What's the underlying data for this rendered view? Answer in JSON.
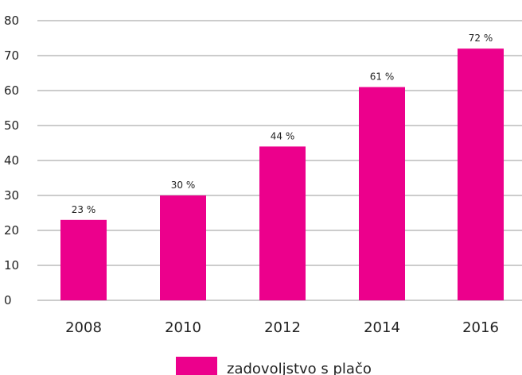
{
  "chart_data": {
    "type": "bar",
    "categories": [
      "2008",
      "2010",
      "2012",
      "2014",
      "2016"
    ],
    "series": [
      {
        "name": "zadovoljstvo s plačo",
        "values": [
          23,
          30,
          44,
          61,
          72
        ],
        "data_labels": [
          "23 %",
          "30 %",
          "44 %",
          "61 %",
          "72 %"
        ],
        "color": "#ec008c"
      }
    ],
    "y_ticks": [
      "0",
      "10",
      "20",
      "30",
      "40",
      "50",
      "60",
      "70",
      "80"
    ],
    "ylim": [
      0,
      80
    ],
    "grid": true,
    "legend_position": "bottom-center",
    "title": "",
    "xlabel": "",
    "ylabel": ""
  }
}
